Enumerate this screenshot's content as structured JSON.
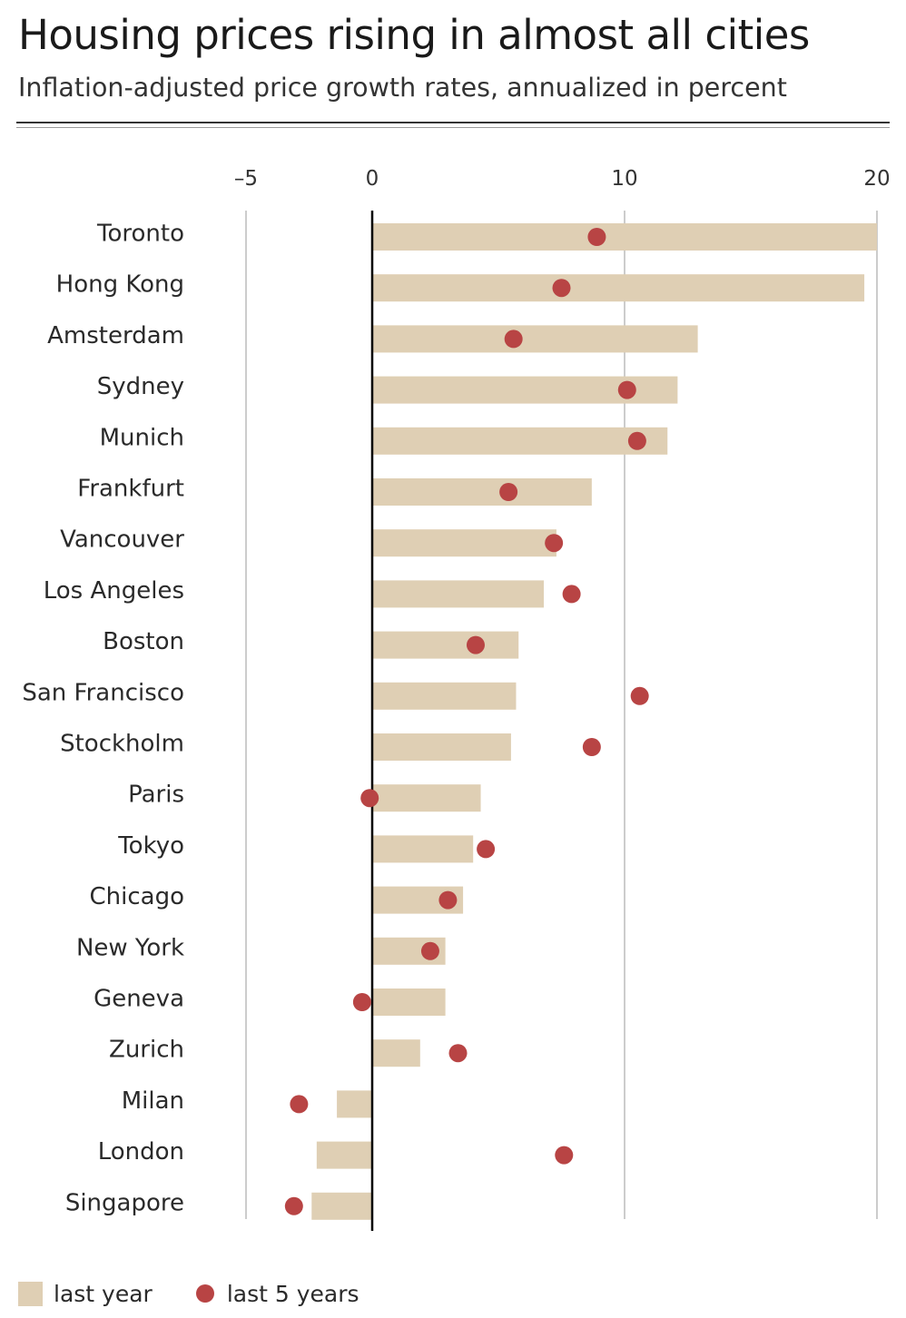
{
  "title": "Housing prices rising in almost all cities",
  "subtitle": "Inflation-adjusted price growth rates, annualized in percent",
  "colors": {
    "bar": "#dfcfb4",
    "dot": "#b84444",
    "zero_line": "#000000",
    "grid": "#999999"
  },
  "legend": {
    "bar_label": "last year",
    "dot_label": "last 5 years"
  },
  "chart_data": {
    "type": "bar",
    "orientation": "horizontal",
    "xlim": [
      -5,
      20
    ],
    "xticks": [
      -5,
      0,
      10,
      20
    ],
    "xtick_labels": [
      "–5",
      "0",
      "10",
      "20"
    ],
    "grid": true,
    "legend_position": "bottom-left",
    "categories": [
      "Toronto",
      "Hong Kong",
      "Amsterdam",
      "Sydney",
      "Munich",
      "Frankfurt",
      "Vancouver",
      "Los Angeles",
      "Boston",
      "San Francisco",
      "Stockholm",
      "Paris",
      "Tokyo",
      "Chicago",
      "New York",
      "Geneva",
      "Zurich",
      "Milan",
      "London",
      "Singapore"
    ],
    "series": [
      {
        "name": "last year",
        "kind": "bar",
        "values": [
          20.0,
          19.5,
          12.9,
          12.1,
          11.7,
          8.7,
          7.3,
          6.8,
          5.8,
          5.7,
          5.5,
          4.3,
          4.0,
          3.6,
          2.9,
          2.9,
          1.9,
          -1.4,
          -2.2,
          -2.4
        ]
      },
      {
        "name": "last 5 years",
        "kind": "dot",
        "values": [
          8.9,
          7.5,
          5.6,
          10.1,
          10.5,
          5.4,
          7.2,
          7.9,
          4.1,
          10.6,
          8.7,
          -0.1,
          4.5,
          3.0,
          2.3,
          -0.4,
          3.4,
          -2.9,
          7.6,
          -3.1
        ]
      }
    ]
  }
}
